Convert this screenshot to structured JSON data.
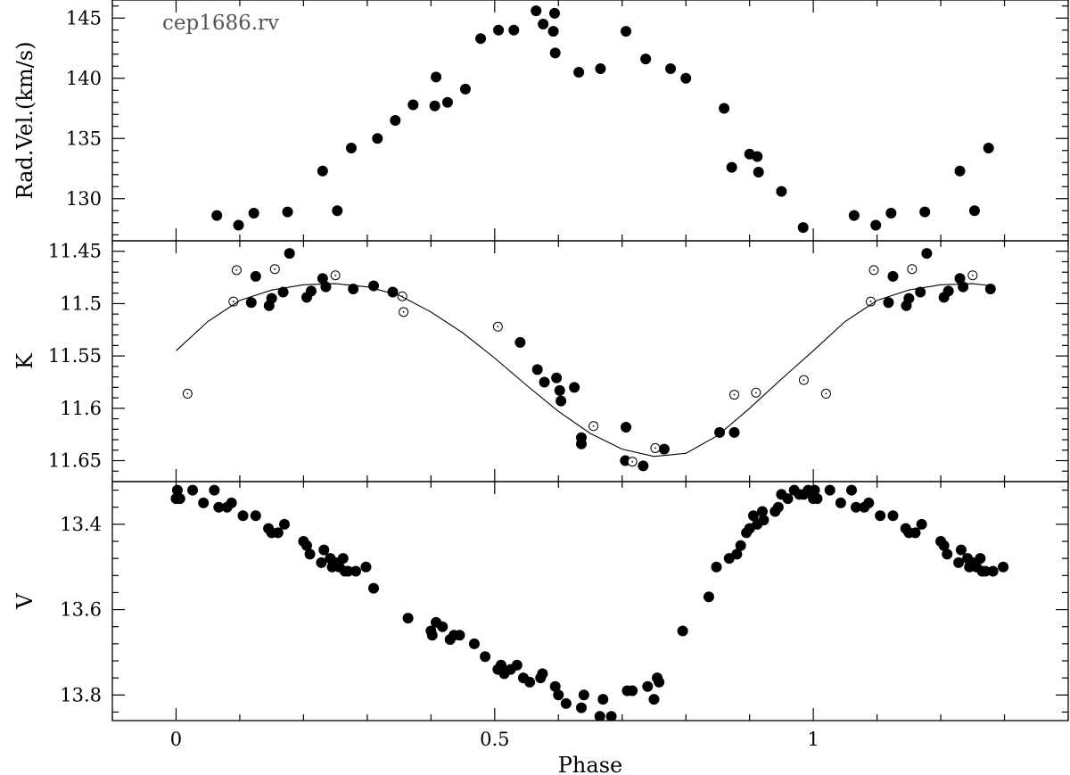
{
  "chart_data": [
    {
      "type": "scatter",
      "panel": "top",
      "annotation": "cep1686.rv",
      "ylabel": "Rad.Vel.(km/s)",
      "xlim": [
        -0.1,
        1.4
      ],
      "ylim": [
        126.5,
        146.5
      ],
      "yticks": [
        130,
        135,
        140,
        145
      ],
      "series": [
        {
          "marker": "filled-circle",
          "points": [
            [
              0.064,
              128.6
            ],
            [
              0.098,
              127.8
            ],
            [
              0.122,
              128.8
            ],
            [
              0.175,
              128.9
            ],
            [
              0.23,
              132.3
            ],
            [
              0.253,
              129.0
            ],
            [
              0.275,
              134.2
            ],
            [
              0.316,
              135.0
            ],
            [
              0.344,
              136.5
            ],
            [
              0.372,
              137.8
            ],
            [
              0.406,
              137.7
            ],
            [
              0.408,
              140.1
            ],
            [
              0.426,
              138.0
            ],
            [
              0.454,
              139.1
            ],
            [
              0.478,
              143.3
            ],
            [
              0.506,
              144.0
            ],
            [
              0.53,
              144.0
            ],
            [
              0.565,
              145.6
            ],
            [
              0.576,
              144.5
            ],
            [
              0.592,
              143.9
            ],
            [
              0.594,
              145.4
            ],
            [
              0.595,
              142.1
            ],
            [
              0.632,
              140.5
            ],
            [
              0.666,
              140.8
            ],
            [
              0.706,
              143.9
            ],
            [
              0.737,
              141.6
            ],
            [
              0.776,
              140.8
            ],
            [
              0.8,
              140.0
            ],
            [
              0.86,
              137.5
            ],
            [
              0.872,
              132.6
            ],
            [
              0.9,
              133.7
            ],
            [
              0.912,
              133.5
            ],
            [
              0.914,
              132.2
            ],
            [
              0.95,
              130.6
            ],
            [
              0.984,
              127.6
            ],
            [
              1.064,
              128.6
            ],
            [
              1.098,
              127.8
            ],
            [
              1.122,
              128.8
            ],
            [
              1.175,
              128.9
            ],
            [
              1.23,
              132.3
            ],
            [
              1.253,
              129.0
            ],
            [
              1.275,
              134.2
            ]
          ]
        }
      ]
    },
    {
      "type": "scatter",
      "panel": "middle",
      "ylabel": "K",
      "xlim": [
        -0.1,
        1.4
      ],
      "ylim": [
        11.67,
        11.44
      ],
      "yticks": [
        11.45,
        11.5,
        11.55,
        11.6,
        11.65
      ],
      "series": [
        {
          "marker": "filled-circle",
          "points": [
            [
              0.118,
              11.499
            ],
            [
              0.125,
              11.474
            ],
            [
              0.146,
              11.502
            ],
            [
              0.15,
              11.495
            ],
            [
              0.168,
              11.489
            ],
            [
              0.178,
              11.452
            ],
            [
              0.205,
              11.494
            ],
            [
              0.212,
              11.488
            ],
            [
              0.23,
              11.476
            ],
            [
              0.235,
              11.484
            ],
            [
              0.278,
              11.486
            ],
            [
              0.31,
              11.483
            ],
            [
              0.34,
              11.489
            ],
            [
              0.54,
              11.537
            ],
            [
              0.567,
              11.563
            ],
            [
              0.578,
              11.575
            ],
            [
              0.597,
              11.571
            ],
            [
              0.602,
              11.583
            ],
            [
              0.604,
              11.593
            ],
            [
              0.625,
              11.58
            ],
            [
              0.636,
              11.628
            ],
            [
              0.636,
              11.634
            ],
            [
              0.705,
              11.65
            ],
            [
              0.706,
              11.618
            ],
            [
              0.733,
              11.655
            ],
            [
              0.766,
              11.639
            ],
            [
              0.853,
              11.623
            ],
            [
              0.876,
              11.623
            ],
            [
              1.118,
              11.499
            ],
            [
              1.125,
              11.474
            ],
            [
              1.146,
              11.502
            ],
            [
              1.15,
              11.495
            ],
            [
              1.168,
              11.489
            ],
            [
              1.178,
              11.452
            ],
            [
              1.205,
              11.494
            ],
            [
              1.212,
              11.488
            ],
            [
              1.23,
              11.476
            ],
            [
              1.235,
              11.484
            ],
            [
              1.278,
              11.486
            ]
          ]
        },
        {
          "marker": "open-circle",
          "points": [
            [
              0.018,
              11.586
            ],
            [
              0.09,
              11.498
            ],
            [
              0.095,
              11.468
            ],
            [
              0.155,
              11.467
            ],
            [
              0.25,
              11.473
            ],
            [
              0.355,
              11.493
            ],
            [
              0.357,
              11.508
            ],
            [
              0.505,
              11.522
            ],
            [
              0.655,
              11.617
            ],
            [
              0.716,
              11.651
            ],
            [
              0.752,
              11.638
            ],
            [
              0.876,
              11.587
            ],
            [
              0.91,
              11.585
            ],
            [
              0.985,
              11.573
            ],
            [
              1.02,
              11.586
            ],
            [
              1.09,
              11.498
            ],
            [
              1.095,
              11.468
            ],
            [
              1.155,
              11.467
            ],
            [
              1.25,
              11.473
            ]
          ]
        },
        {
          "marker": "line",
          "name": "",
          "points": [
            [
              0.0,
              11.545
            ],
            [
              0.05,
              11.517
            ],
            [
              0.1,
              11.497
            ],
            [
              0.15,
              11.487
            ],
            [
              0.2,
              11.482
            ],
            [
              0.25,
              11.481
            ],
            [
              0.3,
              11.484
            ],
            [
              0.35,
              11.492
            ],
            [
              0.4,
              11.508
            ],
            [
              0.45,
              11.528
            ],
            [
              0.5,
              11.552
            ],
            [
              0.55,
              11.578
            ],
            [
              0.6,
              11.603
            ],
            [
              0.65,
              11.624
            ],
            [
              0.7,
              11.639
            ],
            [
              0.75,
              11.646
            ],
            [
              0.8,
              11.643
            ],
            [
              0.85,
              11.626
            ],
            [
              0.9,
              11.6
            ],
            [
              0.95,
              11.572
            ],
            [
              1.0,
              11.545
            ],
            [
              1.05,
              11.517
            ],
            [
              1.1,
              11.497
            ],
            [
              1.15,
              11.487
            ],
            [
              1.2,
              11.482
            ],
            [
              1.25,
              11.481
            ],
            [
              1.28,
              11.483
            ]
          ]
        }
      ]
    },
    {
      "type": "scatter",
      "panel": "bottom",
      "xlabel": "Phase",
      "ylabel": "V",
      "xlim": [
        -0.1,
        1.4
      ],
      "ylim": [
        13.86,
        13.3
      ],
      "yticks": [
        13.4,
        13.6,
        13.8
      ],
      "xticks": [
        0,
        0.5,
        1
      ],
      "xtick_labels": [
        "0",
        "0.5",
        "1"
      ],
      "series": [
        {
          "marker": "filled-circle",
          "points": [
            [
              0.0,
              13.34
            ],
            [
              0.002,
              13.32
            ],
            [
              0.006,
              13.34
            ],
            [
              0.026,
              13.32
            ],
            [
              0.043,
              13.35
            ],
            [
              0.06,
              13.32
            ],
            [
              0.067,
              13.36
            ],
            [
              0.08,
              13.36
            ],
            [
              0.087,
              13.35
            ],
            [
              0.105,
              13.38
            ],
            [
              0.125,
              13.38
            ],
            [
              0.145,
              13.41
            ],
            [
              0.15,
              13.42
            ],
            [
              0.16,
              13.42
            ],
            [
              0.17,
              13.4
            ],
            [
              0.2,
              13.44
            ],
            [
              0.205,
              13.45
            ],
            [
              0.21,
              13.47
            ],
            [
              0.228,
              13.49
            ],
            [
              0.232,
              13.46
            ],
            [
              0.242,
              13.48
            ],
            [
              0.245,
              13.5
            ],
            [
              0.25,
              13.49
            ],
            [
              0.256,
              13.5
            ],
            [
              0.262,
              13.48
            ],
            [
              0.265,
              13.51
            ],
            [
              0.27,
              13.51
            ],
            [
              0.282,
              13.51
            ],
            [
              0.298,
              13.5
            ],
            [
              0.31,
              13.55
            ],
            [
              0.364,
              13.62
            ],
            [
              0.4,
              13.65
            ],
            [
              0.402,
              13.66
            ],
            [
              0.408,
              13.63
            ],
            [
              0.418,
              13.64
            ],
            [
              0.43,
              13.67
            ],
            [
              0.436,
              13.66
            ],
            [
              0.445,
              13.66
            ],
            [
              0.468,
              13.68
            ],
            [
              0.485,
              13.71
            ],
            [
              0.505,
              13.74
            ],
            [
              0.51,
              13.73
            ],
            [
              0.515,
              13.75
            ],
            [
              0.525,
              13.74
            ],
            [
              0.535,
              13.73
            ],
            [
              0.545,
              13.76
            ],
            [
              0.555,
              13.77
            ],
            [
              0.572,
              13.76
            ],
            [
              0.575,
              13.75
            ],
            [
              0.595,
              13.78
            ],
            [
              0.6,
              13.8
            ],
            [
              0.612,
              13.82
            ],
            [
              0.636,
              13.83
            ],
            [
              0.64,
              13.8
            ],
            [
              0.665,
              13.85
            ],
            [
              0.67,
              13.81
            ],
            [
              0.683,
              13.85
            ],
            [
              0.708,
              13.79
            ],
            [
              0.716,
              13.79
            ],
            [
              0.74,
              13.78
            ],
            [
              0.75,
              13.81
            ],
            [
              0.755,
              13.76
            ],
            [
              0.758,
              13.77
            ],
            [
              0.795,
              13.65
            ],
            [
              0.836,
              13.57
            ],
            [
              0.848,
              13.5
            ],
            [
              0.868,
              13.48
            ],
            [
              0.88,
              13.47
            ],
            [
              0.886,
              13.45
            ],
            [
              0.895,
              13.42
            ],
            [
              0.9,
              13.41
            ],
            [
              0.906,
              13.38
            ],
            [
              0.912,
              13.4
            ],
            [
              0.92,
              13.37
            ],
            [
              0.922,
              13.39
            ],
            [
              0.94,
              13.37
            ],
            [
              0.945,
              13.36
            ],
            [
              0.95,
              13.33
            ],
            [
              0.96,
              13.34
            ],
            [
              0.97,
              13.32
            ],
            [
              0.978,
              13.33
            ],
            [
              0.985,
              13.33
            ],
            [
              0.992,
              13.32
            ],
            [
              1.0,
              13.34
            ],
            [
              1.002,
              13.32
            ],
            [
              1.006,
              13.34
            ],
            [
              1.026,
              13.32
            ],
            [
              1.043,
              13.35
            ],
            [
              1.06,
              13.32
            ],
            [
              1.067,
              13.36
            ],
            [
              1.08,
              13.36
            ],
            [
              1.087,
              13.35
            ],
            [
              1.105,
              13.38
            ],
            [
              1.125,
              13.38
            ],
            [
              1.145,
              13.41
            ],
            [
              1.15,
              13.42
            ],
            [
              1.16,
              13.42
            ],
            [
              1.17,
              13.4
            ],
            [
              1.2,
              13.44
            ],
            [
              1.205,
              13.45
            ],
            [
              1.21,
              13.47
            ],
            [
              1.228,
              13.49
            ],
            [
              1.232,
              13.46
            ],
            [
              1.242,
              13.48
            ],
            [
              1.245,
              13.5
            ],
            [
              1.25,
              13.49
            ],
            [
              1.256,
              13.5
            ],
            [
              1.262,
              13.48
            ],
            [
              1.265,
              13.51
            ],
            [
              1.27,
              13.51
            ],
            [
              1.282,
              13.51
            ],
            [
              1.298,
              13.5
            ]
          ]
        }
      ]
    }
  ]
}
